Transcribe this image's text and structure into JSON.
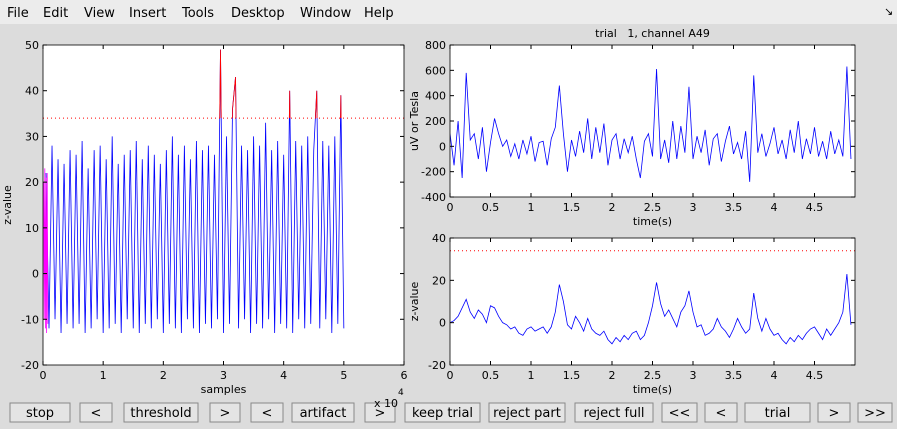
{
  "menu": [
    "File",
    "Edit",
    "View",
    "Insert",
    "Tools",
    "Desktop",
    "Window",
    "Help"
  ],
  "buttons": [
    "stop",
    "<",
    "threshold",
    ">",
    "<",
    "artifact",
    ">",
    "keep trial",
    "reject part",
    "reject full",
    "<<",
    "<",
    "trial",
    ">",
    ">>"
  ],
  "chart_data": [
    {
      "type": "line",
      "xlabel": "samples",
      "ylabel": "z-value",
      "x_multiplier": "x 10",
      "x_exponent": "4",
      "xlim": [
        0,
        6
      ],
      "xticks": [
        0,
        1,
        2,
        3,
        4,
        5,
        6
      ],
      "ylim": [
        -20,
        50
      ],
      "yticks": [
        -20,
        -10,
        0,
        10,
        20,
        30,
        40,
        50
      ],
      "threshold": 34,
      "threshold_color": "#ff0000",
      "above_threshold_color": "#ff0000",
      "series": [
        {
          "color": "#0000ff",
          "x": [
            0.05,
            0.1,
            0.15,
            0.2,
            0.25,
            0.3,
            0.35,
            0.4,
            0.45,
            0.5,
            0.55,
            0.6,
            0.65,
            0.7,
            0.75,
            0.8,
            0.85,
            0.9,
            0.95,
            1.0,
            1.05,
            1.1,
            1.15,
            1.2,
            1.25,
            1.3,
            1.35,
            1.4,
            1.45,
            1.5,
            1.55,
            1.6,
            1.65,
            1.7,
            1.75,
            1.8,
            1.85,
            1.9,
            1.95,
            2.0,
            2.05,
            2.1,
            2.15,
            2.2,
            2.25,
            2.3,
            2.35,
            2.4,
            2.45,
            2.5,
            2.55,
            2.6,
            2.65,
            2.7,
            2.75,
            2.8,
            2.85,
            2.9,
            2.95,
            3.0,
            3.05,
            3.1,
            3.15,
            3.2,
            3.25,
            3.3,
            3.35,
            3.4,
            3.45,
            3.5,
            3.55,
            3.6,
            3.65,
            3.7,
            3.75,
            3.8,
            3.85,
            3.9,
            3.95,
            4.0,
            4.05,
            4.1,
            4.15,
            4.2,
            4.25,
            4.3,
            4.35,
            4.4,
            4.45,
            4.5,
            4.55,
            4.6,
            4.65,
            4.7,
            4.75,
            4.8,
            4.85,
            4.9,
            4.95,
            5.0
          ],
          "values": [
            22,
            -12,
            28,
            -10,
            25,
            -13,
            24,
            -11,
            27,
            -12,
            26,
            -11,
            29,
            -13,
            23,
            -12,
            27,
            -10,
            28,
            -13,
            25,
            -12,
            30,
            -11,
            24,
            -13,
            26,
            -10,
            27,
            -12,
            29,
            -13,
            25,
            -11,
            28,
            -12,
            26,
            -10,
            24,
            -13,
            27,
            -11,
            30,
            -12,
            26,
            -13,
            28,
            -10,
            25,
            -12,
            29,
            -13,
            27,
            -11,
            28,
            -12,
            26,
            -10,
            49,
            -13,
            30,
            -11,
            36,
            43,
            -12,
            28,
            -10,
            27,
            -13,
            30,
            -11,
            28,
            -12,
            33,
            -10,
            27,
            -13,
            29,
            -11,
            26,
            -12,
            40,
            -13,
            29,
            -10,
            28,
            -12,
            30,
            -11,
            27,
            40,
            -12,
            29,
            -10,
            28,
            -13,
            30,
            -11,
            39,
            -12
          ]
        },
        {
          "color": "#ff00ff",
          "x": [
            0.01,
            0.02,
            0.03,
            0.04,
            0.05,
            0.06,
            0.07,
            0.08
          ],
          "values": [
            20,
            -10,
            23,
            -12,
            21,
            -13,
            22,
            -11
          ]
        }
      ]
    },
    {
      "type": "line",
      "title": "trial   1, channel A49",
      "xlabel": "time(s)",
      "ylabel": "uV or Tesla",
      "xlim": [
        0,
        5
      ],
      "xticks": [
        0,
        0.5,
        1,
        1.5,
        2,
        2.5,
        3,
        3.5,
        4,
        4.5
      ],
      "ylim": [
        -400,
        800
      ],
      "yticks": [
        -400,
        -200,
        0,
        200,
        400,
        600,
        800
      ],
      "x": [
        0,
        0.05,
        0.1,
        0.15,
        0.2,
        0.25,
        0.3,
        0.35,
        0.4,
        0.45,
        0.5,
        0.55,
        0.6,
        0.65,
        0.7,
        0.75,
        0.8,
        0.85,
        0.9,
        0.95,
        1.0,
        1.05,
        1.1,
        1.15,
        1.2,
        1.25,
        1.3,
        1.35,
        1.4,
        1.45,
        1.5,
        1.55,
        1.6,
        1.65,
        1.7,
        1.75,
        1.8,
        1.85,
        1.9,
        1.95,
        2.0,
        2.05,
        2.1,
        2.15,
        2.2,
        2.25,
        2.3,
        2.35,
        2.4,
        2.45,
        2.5,
        2.55,
        2.6,
        2.65,
        2.7,
        2.75,
        2.8,
        2.85,
        2.9,
        2.95,
        3.0,
        3.05,
        3.1,
        3.15,
        3.2,
        3.25,
        3.3,
        3.35,
        3.4,
        3.45,
        3.5,
        3.55,
        3.6,
        3.65,
        3.7,
        3.75,
        3.8,
        3.85,
        3.9,
        3.95,
        4.0,
        4.05,
        4.1,
        4.15,
        4.2,
        4.25,
        4.3,
        4.35,
        4.4,
        4.45,
        4.5,
        4.55,
        4.6,
        4.65,
        4.7,
        4.75,
        4.8,
        4.85,
        4.9,
        4.95
      ],
      "series": [
        {
          "color": "#0000ff",
          "values": [
            100,
            -150,
            200,
            -250,
            580,
            50,
            100,
            -100,
            150,
            -200,
            30,
            220,
            100,
            0,
            50,
            -80,
            20,
            -100,
            50,
            -60,
            80,
            -120,
            30,
            40,
            -150,
            60,
            150,
            480,
            100,
            -200,
            50,
            -80,
            120,
            -50,
            220,
            -100,
            150,
            -50,
            180,
            -150,
            50,
            100,
            -100,
            60,
            -50,
            80,
            -100,
            -250,
            40,
            100,
            -80,
            610,
            -100,
            50,
            -130,
            200,
            -100,
            160,
            -50,
            470,
            -100,
            80,
            -50,
            130,
            -150,
            60,
            100,
            -120,
            40,
            160,
            -60,
            30,
            -100,
            120,
            -280,
            560,
            -50,
            100,
            -80,
            20,
            150,
            -60,
            50,
            -100,
            130,
            -50,
            200,
            -100,
            60,
            -60,
            150,
            -80,
            40,
            -100,
            120,
            -60,
            50,
            -80,
            630,
            -100
          ]
        }
      ]
    },
    {
      "type": "line",
      "xlabel": "time(s)",
      "ylabel": "z-value",
      "xlim": [
        0,
        5
      ],
      "xticks": [
        0,
        0.5,
        1,
        1.5,
        2,
        2.5,
        3,
        3.5,
        4,
        4.5
      ],
      "ylim": [
        -20,
        40
      ],
      "yticks": [
        -20,
        0,
        20,
        40
      ],
      "threshold": 34,
      "threshold_color": "#ff0000",
      "x": [
        0,
        0.05,
        0.1,
        0.15,
        0.2,
        0.25,
        0.3,
        0.35,
        0.4,
        0.45,
        0.5,
        0.55,
        0.6,
        0.65,
        0.7,
        0.75,
        0.8,
        0.85,
        0.9,
        0.95,
        1.0,
        1.05,
        1.1,
        1.15,
        1.2,
        1.25,
        1.3,
        1.35,
        1.4,
        1.45,
        1.5,
        1.55,
        1.6,
        1.65,
        1.7,
        1.75,
        1.8,
        1.85,
        1.9,
        1.95,
        2.0,
        2.05,
        2.1,
        2.15,
        2.2,
        2.25,
        2.3,
        2.35,
        2.4,
        2.45,
        2.5,
        2.55,
        2.6,
        2.65,
        2.7,
        2.75,
        2.8,
        2.85,
        2.9,
        2.95,
        3.0,
        3.05,
        3.1,
        3.15,
        3.2,
        3.25,
        3.3,
        3.35,
        3.4,
        3.45,
        3.5,
        3.55,
        3.6,
        3.65,
        3.7,
        3.75,
        3.8,
        3.85,
        3.9,
        3.95,
        4.0,
        4.05,
        4.1,
        4.15,
        4.2,
        4.25,
        4.3,
        4.35,
        4.4,
        4.45,
        4.5,
        4.55,
        4.6,
        4.65,
        4.7,
        4.75,
        4.8,
        4.85,
        4.9,
        4.95
      ],
      "series": [
        {
          "color": "#0000ff",
          "values": [
            0,
            1,
            3,
            7,
            11,
            5,
            2,
            6,
            4,
            0,
            8,
            7,
            3,
            0,
            -1,
            -3,
            -2,
            -5,
            -6,
            -3,
            -2,
            -4,
            -3,
            -2,
            -5,
            -2,
            5,
            18,
            10,
            -1,
            -3,
            3,
            0,
            -4,
            2,
            -3,
            -5,
            -6,
            -4,
            -8,
            -10,
            -7,
            -9,
            -6,
            -8,
            -5,
            -4,
            -8,
            -6,
            0,
            8,
            19,
            9,
            3,
            6,
            2,
            -2,
            5,
            8,
            15,
            5,
            -2,
            -1,
            -6,
            -5,
            -3,
            2,
            -2,
            -4,
            -7,
            -3,
            2,
            -2,
            -5,
            -3,
            14,
            2,
            -4,
            2,
            -3,
            -6,
            -5,
            -8,
            -10,
            -7,
            -9,
            -6,
            -8,
            -5,
            -3,
            -2,
            -5,
            -8,
            -3,
            -6,
            -3,
            0,
            5,
            23,
            -1
          ]
        }
      ]
    }
  ]
}
